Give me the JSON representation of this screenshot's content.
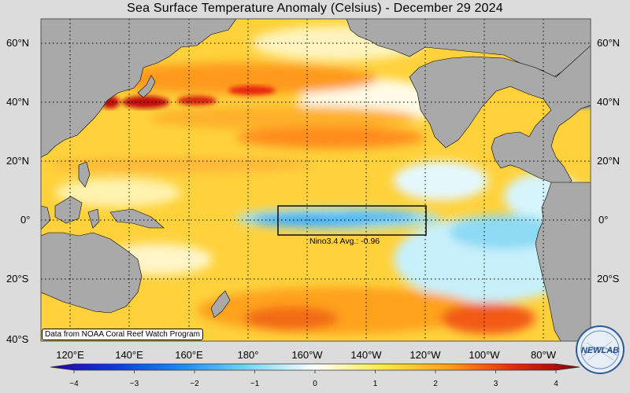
{
  "title": "Sea Surface Temperature Anomaly (Celsius) - December 29 2024",
  "lat_labels": [
    "60°N",
    "40°N",
    "20°N",
    "0°",
    "20°S",
    "40°S"
  ],
  "lon_labels": [
    "120°E",
    "140°E",
    "160°E",
    "180°",
    "160°W",
    "140°W",
    "120°W",
    "100°W",
    "80°W"
  ],
  "nino_box": {
    "name": "Nino3.4",
    "label": "Nino3.4 Avg.: -0.96",
    "avg": -0.96
  },
  "credit": "Data from NOAA Coral Reef Watch Program",
  "colorbar": {
    "ticks": [
      "−4",
      "−3",
      "−2",
      "−1",
      "0",
      "1",
      "2",
      "3",
      "4"
    ],
    "min": -4,
    "max": 4,
    "colors": [
      "#2a00a8",
      "#0a3cd8",
      "#1e8cf0",
      "#7ad6f5",
      "#ffffff",
      "#ffe94a",
      "#ffa21a",
      "#e8280e",
      "#8c0000"
    ]
  },
  "colors": {
    "land": "#a9a9a9",
    "ocean_warm": "#ffd23c",
    "ocean_cool": "#2ea8f2",
    "background": "#dcdcdc"
  },
  "logo": {
    "text": "NEWLAB"
  }
}
